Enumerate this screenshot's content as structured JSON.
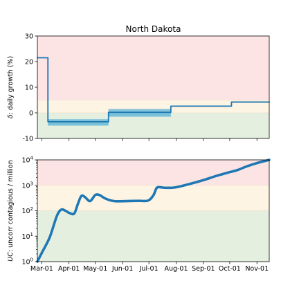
{
  "chart_data": [
    {
      "type": "line",
      "title": "North Dakota",
      "ylabel": "δ: daily growth (%)",
      "ylabel_prefix": "δ",
      "ylabel_rest": ": daily growth (%)",
      "ylim": [
        -10,
        30
      ],
      "yticks": [
        -10,
        0,
        10,
        20,
        30
      ],
      "xlim": [
        "2020-02-25",
        "2020-11-15"
      ],
      "bands": [
        {
          "from": 5,
          "to": 30,
          "color": "#fde4e4"
        },
        {
          "from": 0,
          "to": 5,
          "color": "#fdf4e3"
        },
        {
          "from": -10,
          "to": 0,
          "color": "#e5efe0"
        }
      ],
      "uncertainty": [
        {
          "x0": "2020-03-08",
          "x1": "2020-05-16",
          "lo": -5,
          "hi": -2.5
        },
        {
          "x0": "2020-05-16",
          "x1": "2020-07-26",
          "lo": -1.5,
          "hi": 1.5
        }
      ],
      "series": [
        {
          "color": "#1f77b4",
          "step": true,
          "x": [
            "2020-02-25",
            "2020-03-08",
            "2020-03-08",
            "2020-05-16",
            "2020-05-16",
            "2020-07-26",
            "2020-07-26",
            "2020-10-03",
            "2020-10-03",
            "2020-11-15"
          ],
          "y": [
            21.5,
            21.5,
            -3.5,
            -3.5,
            0.2,
            0.2,
            2.6,
            2.6,
            4.2,
            4.2
          ]
        }
      ]
    },
    {
      "type": "line",
      "ylabel": "UC: uncorr contagious / million",
      "ylabel_prefix": "UC",
      "ylabel_rest": ": uncorr contagious / million",
      "yscale": "log",
      "ylim": [
        1,
        10000
      ],
      "yticks": [
        {
          "value": 1,
          "base": "10",
          "exp": "0"
        },
        {
          "value": 10,
          "base": "10",
          "exp": "1"
        },
        {
          "value": 100,
          "base": "10",
          "exp": "2"
        },
        {
          "value": 1000,
          "base": "10",
          "exp": "3"
        },
        {
          "value": 10000,
          "base": "10",
          "exp": "4"
        }
      ],
      "xlim": [
        "2020-02-25",
        "2020-11-15"
      ],
      "xticks": [
        {
          "date": "2020-03-01",
          "label": "Mar-01"
        },
        {
          "date": "2020-04-01",
          "label": "Apr-01"
        },
        {
          "date": "2020-05-01",
          "label": "May-01"
        },
        {
          "date": "2020-06-01",
          "label": "Jun-01"
        },
        {
          "date": "2020-07-01",
          "label": "Jul-01"
        },
        {
          "date": "2020-08-01",
          "label": "Aug-01"
        },
        {
          "date": "2020-09-01",
          "label": "Sep-01"
        },
        {
          "date": "2020-10-01",
          "label": "Oct-01"
        },
        {
          "date": "2020-11-01",
          "label": "Nov-01"
        }
      ],
      "bands": [
        {
          "from": 1000,
          "to": 10000,
          "color": "#fde4e4"
        },
        {
          "from": 100,
          "to": 1000,
          "color": "#fdf4e3"
        },
        {
          "from": 1,
          "to": 100,
          "color": "#e5efe0"
        }
      ],
      "series": [
        {
          "color": "#1f77b4",
          "x": [
            "2020-02-25",
            "2020-03-01",
            "2020-03-10",
            "2020-03-18",
            "2020-03-23",
            "2020-03-28",
            "2020-04-02",
            "2020-04-07",
            "2020-04-11",
            "2020-04-15",
            "2020-04-19",
            "2020-04-25",
            "2020-05-01",
            "2020-05-06",
            "2020-05-11",
            "2020-05-16",
            "2020-05-22",
            "2020-05-28",
            "2020-06-05",
            "2020-06-20",
            "2020-06-30",
            "2020-07-06",
            "2020-07-10",
            "2020-07-15",
            "2020-07-20",
            "2020-07-31",
            "2020-08-15",
            "2020-09-01",
            "2020-09-15",
            "2020-10-01",
            "2020-10-10",
            "2020-10-20",
            "2020-11-01",
            "2020-11-15"
          ],
          "y": [
            1,
            2.2,
            9,
            60,
            110,
            100,
            80,
            78,
            180,
            380,
            350,
            240,
            420,
            410,
            320,
            270,
            240,
            235,
            240,
            245,
            250,
            400,
            800,
            830,
            800,
            830,
            1100,
            1600,
            2300,
            3300,
            4000,
            5500,
            7500,
            10000
          ]
        }
      ]
    }
  ]
}
